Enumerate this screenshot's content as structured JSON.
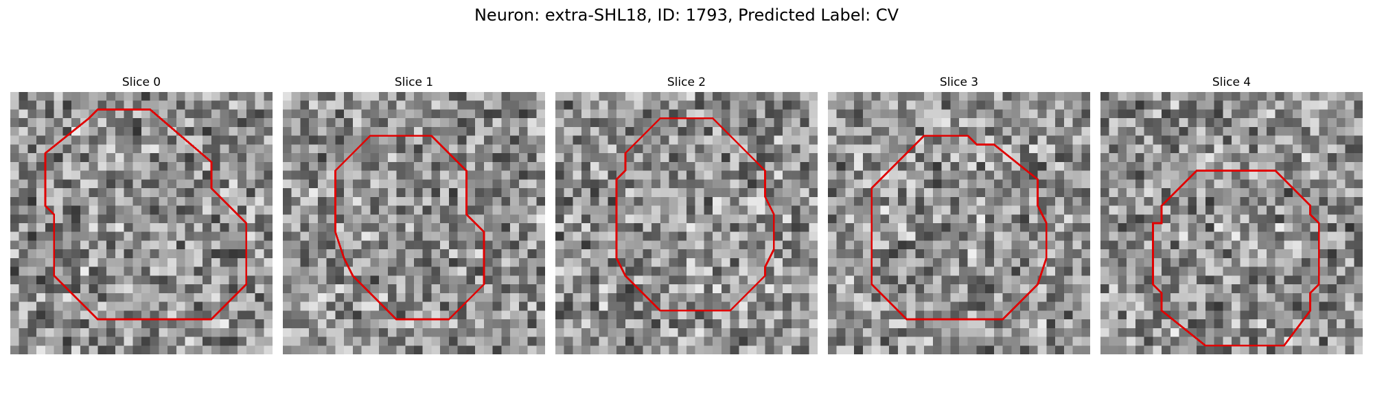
{
  "figure": {
    "title": "Neuron: extra-SHL18, ID: 1793, Predicted Label: CV"
  },
  "panels": [
    {
      "label": "Slice 0",
      "seed": 11,
      "contour_color": "#e00000"
    },
    {
      "label": "Slice 1",
      "seed": 23,
      "contour_color": "#e00000"
    },
    {
      "label": "Slice 2",
      "seed": 37,
      "contour_color": "#e00000"
    },
    {
      "label": "Slice 3",
      "seed": 41,
      "contour_color": "#e00000"
    },
    {
      "label": "Slice 4",
      "seed": 59,
      "contour_color": "#e00000"
    }
  ]
}
